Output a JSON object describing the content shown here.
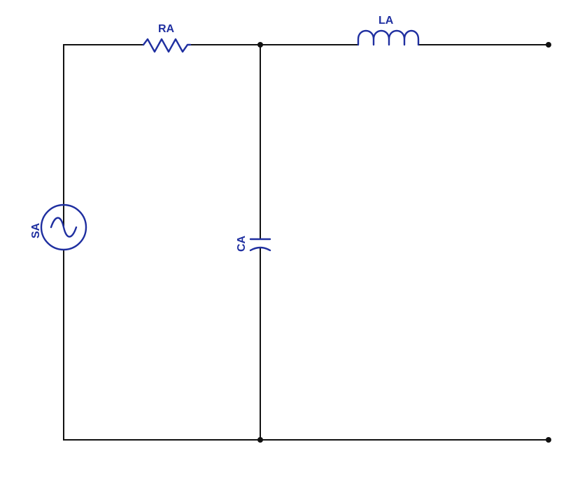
{
  "colors": {
    "wire": "#111111",
    "component": "#1f2fa0",
    "background": "#ffffff"
  },
  "components": {
    "source": {
      "label": "SA",
      "type": "ac-voltage-source"
    },
    "resistor": {
      "label": "RA",
      "type": "resistor"
    },
    "inductor": {
      "label": "LA",
      "type": "inductor"
    },
    "capacitor": {
      "label": "CA",
      "type": "capacitor"
    }
  },
  "terminals": [
    {
      "name": "output-terminal-top"
    },
    {
      "name": "output-terminal-bottom"
    }
  ]
}
